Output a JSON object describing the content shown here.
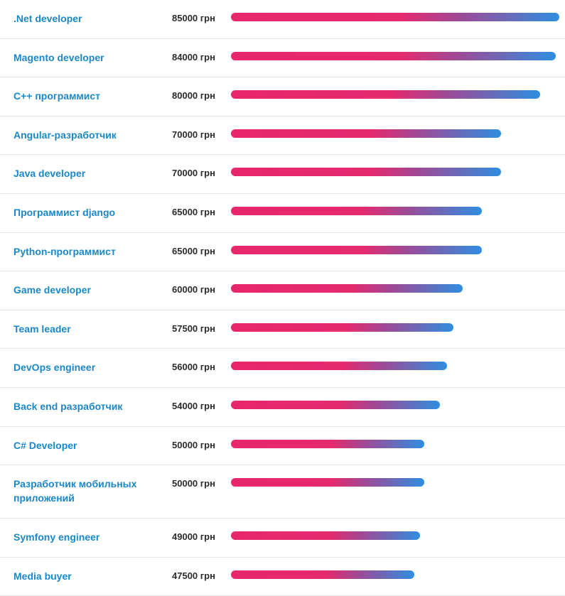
{
  "chart_data": {
    "type": "bar",
    "orientation": "horizontal",
    "currency_suffix": "грн",
    "xlim": [
      0,
      85000
    ],
    "colors": {
      "bar_start": "#e8266c",
      "bar_end": "#2f8ee0",
      "label": "#1a87c9"
    },
    "categories": [
      ".Net developer",
      "Magento developer",
      "C++ программист",
      "Angular-разработчик",
      "Java developer",
      "Программист django",
      "Python-программист",
      "Game developer",
      "Team leader",
      "DevOps engineer",
      "Back end разработчик",
      "C# Developer",
      "Разработчик мобильных приложений",
      "Symfony engineer",
      "Media buyer"
    ],
    "values": [
      85000,
      84000,
      80000,
      70000,
      70000,
      65000,
      65000,
      60000,
      57500,
      56000,
      54000,
      50000,
      50000,
      49000,
      47500
    ],
    "value_labels": [
      "85000 грн",
      "84000 грн",
      "80000 грн",
      "70000 грн",
      "70000 грн",
      "65000 грн",
      "65000 грн",
      "60000 грн",
      "57500 грн",
      "56000 грн",
      "54000 грн",
      "50000 грн",
      "50000 грн",
      "49000 грн",
      "47500 грн"
    ]
  }
}
